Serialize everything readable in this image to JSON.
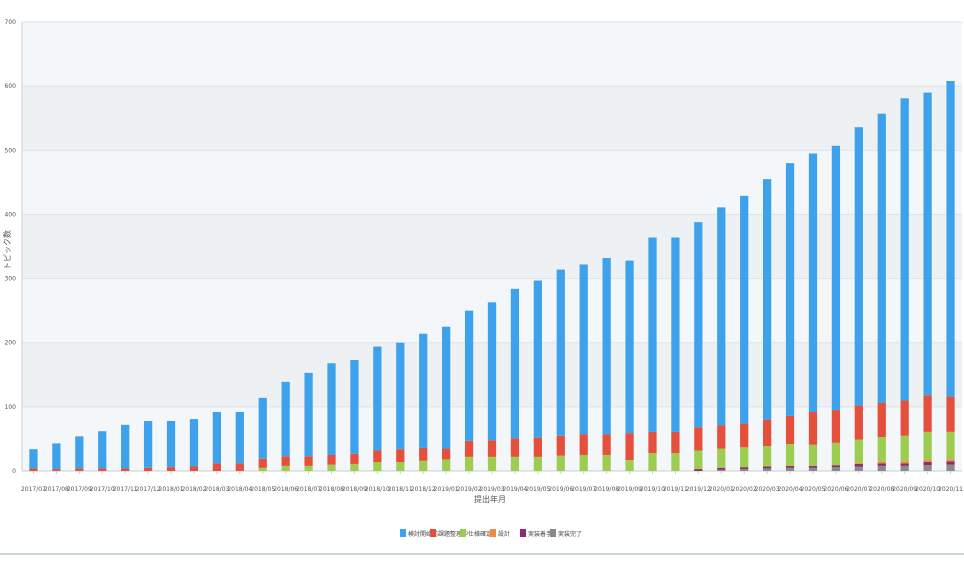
{
  "chart_data": {
    "type": "bar",
    "stacked": true,
    "xlabel": "提出年月",
    "ylabel": "トピック数",
    "ylim": [
      0,
      700
    ],
    "yticks": [
      0,
      100,
      200,
      300,
      400,
      500,
      600,
      700
    ],
    "grid": true,
    "legend_position": "bottom",
    "categories": [
      "2017/07",
      "2017/08",
      "2017/09",
      "2017/10",
      "2017/11",
      "2017/12",
      "2018/01",
      "2018/02",
      "2018/03",
      "2018/04",
      "2018/05",
      "2018/06",
      "2018/07",
      "2018/08",
      "2018/09",
      "2018/10",
      "2018/11",
      "2018/12",
      "2019/01",
      "2019/02",
      "2019/03",
      "2019/04",
      "2019/05",
      "2019/06",
      "2019/07",
      "2019/08",
      "2019/09",
      "2019/10",
      "2019/11",
      "2019/12",
      "2020/01",
      "2020/02",
      "2020/03",
      "2020/04",
      "2020/05",
      "2020/06",
      "2020/07",
      "2020/08",
      "2020/09",
      "2020/10",
      "2020/11"
    ],
    "series": [
      {
        "name": "実装完了",
        "color": "#8a8a8a",
        "values": [
          0,
          0,
          0,
          0,
          0,
          0,
          0,
          0,
          0,
          0,
          0,
          0,
          0,
          0,
          0,
          0,
          0,
          0,
          0,
          0,
          0,
          0,
          0,
          0,
          0,
          0,
          0,
          0,
          0,
          0,
          2,
          3,
          4,
          5,
          5,
          6,
          7,
          8,
          8,
          9,
          10
        ]
      },
      {
        "name": "実装着手",
        "color": "#8e2a72",
        "values": [
          0,
          0,
          0,
          0,
          0,
          0,
          0,
          0,
          0,
          0,
          0,
          0,
          0,
          0,
          0,
          0,
          0,
          0,
          0,
          0,
          0,
          0,
          0,
          0,
          0,
          0,
          0,
          0,
          0,
          3,
          3,
          3,
          3,
          3,
          3,
          3,
          4,
          4,
          4,
          5,
          5
        ]
      },
      {
        "name": "設計",
        "color": "#ef8a42",
        "values": [
          0,
          0,
          0,
          0,
          0,
          0,
          0,
          0,
          0,
          0,
          0,
          0,
          0,
          0,
          0,
          0,
          0,
          0,
          0,
          0,
          0,
          0,
          0,
          0,
          0,
          0,
          0,
          0,
          0,
          0,
          0,
          0,
          0,
          0,
          0,
          0,
          2,
          3,
          3,
          3,
          3
        ]
      },
      {
        "name": "仕様確定",
        "color": "#9ccd50",
        "values": [
          0,
          0,
          0,
          0,
          0,
          0,
          0,
          0,
          0,
          0,
          5,
          8,
          8,
          10,
          11,
          14,
          14,
          16,
          18,
          22,
          22,
          22,
          22,
          24,
          25,
          25,
          17,
          28,
          28,
          29,
          30,
          31,
          32,
          34,
          33,
          35,
          36,
          38,
          40,
          44,
          43
        ]
      },
      {
        "name": "課題整理中",
        "color": "#e4503c",
        "values": [
          4,
          3,
          4,
          4,
          4,
          5,
          6,
          7,
          12,
          12,
          14,
          15,
          15,
          15,
          16,
          18,
          20,
          20,
          17,
          25,
          26,
          29,
          30,
          31,
          32,
          32,
          42,
          33,
          33,
          36,
          36,
          37,
          41,
          44,
          51,
          51,
          53,
          53,
          55,
          57,
          55
        ]
      },
      {
        "name": "検討開始前",
        "color": "#3da2eb",
        "values": [
          30,
          40,
          50,
          58,
          68,
          73,
          72,
          74,
          80,
          80,
          95,
          116,
          130,
          143,
          146,
          162,
          166,
          178,
          190,
          203,
          215,
          233,
          245,
          259,
          265,
          275,
          269,
          303,
          303,
          320,
          340,
          355,
          375,
          394,
          403,
          412,
          434,
          451,
          471,
          472,
          492
        ]
      }
    ]
  }
}
